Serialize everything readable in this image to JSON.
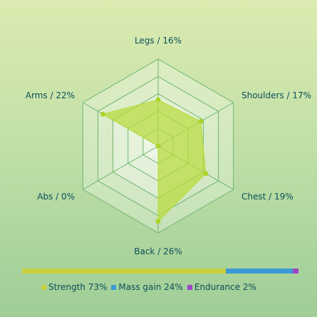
{
  "chart_data": {
    "type": "radar",
    "categories": [
      "Legs",
      "Shoulders",
      "Chest",
      "Back",
      "Abs",
      "Arms"
    ],
    "values": [
      16,
      17,
      19,
      26,
      0,
      22
    ],
    "labels": [
      "Legs / 16%",
      "Shoulders / 17%",
      "Chest / 19%",
      "Back / 26%",
      "Abs / 0%",
      "Arms / 22%"
    ],
    "rmax": 30,
    "rings": 5,
    "colors": {
      "fill": "#b7db3c",
      "point": "#a9d62a",
      "grid": "#6fb56f"
    }
  },
  "split_bar": {
    "segments": [
      {
        "label": "Strength 73%",
        "value": 73,
        "color": "#c9cf3e"
      },
      {
        "label": "Mass gain 24%",
        "value": 24,
        "color": "#3b9ad3"
      },
      {
        "label": "Endurance 2%",
        "value": 2,
        "color": "#9c45c7"
      }
    ]
  }
}
